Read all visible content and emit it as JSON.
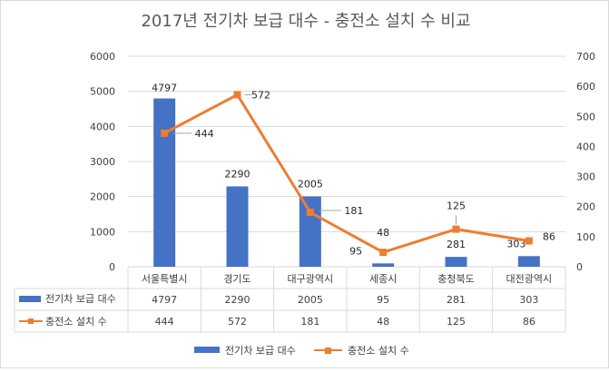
{
  "chart_data": {
    "type": "bar+line",
    "title": "2017년 전기차 보급 대수 - 충전소 설치 수 비교",
    "categories": [
      "서울특별시",
      "경기도",
      "대구광역시",
      "세종시",
      "충청북도",
      "대전광역시"
    ],
    "series": [
      {
        "name": "전기차 보급 대수",
        "type": "bar",
        "axis": "left",
        "values": [
          4797,
          2290,
          2005,
          95,
          281,
          303
        ]
      },
      {
        "name": "충전소 설치 수",
        "type": "line",
        "axis": "right",
        "values": [
          444,
          572,
          181,
          48,
          125,
          86
        ]
      }
    ],
    "y_left": {
      "min": 0,
      "max": 6000,
      "step": 1000,
      "ticks": [
        "0",
        "1000",
        "2000",
        "3000",
        "4000",
        "5000",
        "6000"
      ]
    },
    "y_right": {
      "min": 0,
      "max": 700,
      "step": 100,
      "ticks": [
        "0",
        "100",
        "200",
        "300",
        "400",
        "500",
        "600",
        "700"
      ]
    },
    "grid": true,
    "data_table": true,
    "legend": "bottom",
    "colors": {
      "bar": "#4472c4",
      "line": "#ed7d31",
      "grid": "#d9d9d9",
      "text": "#404040",
      "title": "#595959"
    }
  }
}
